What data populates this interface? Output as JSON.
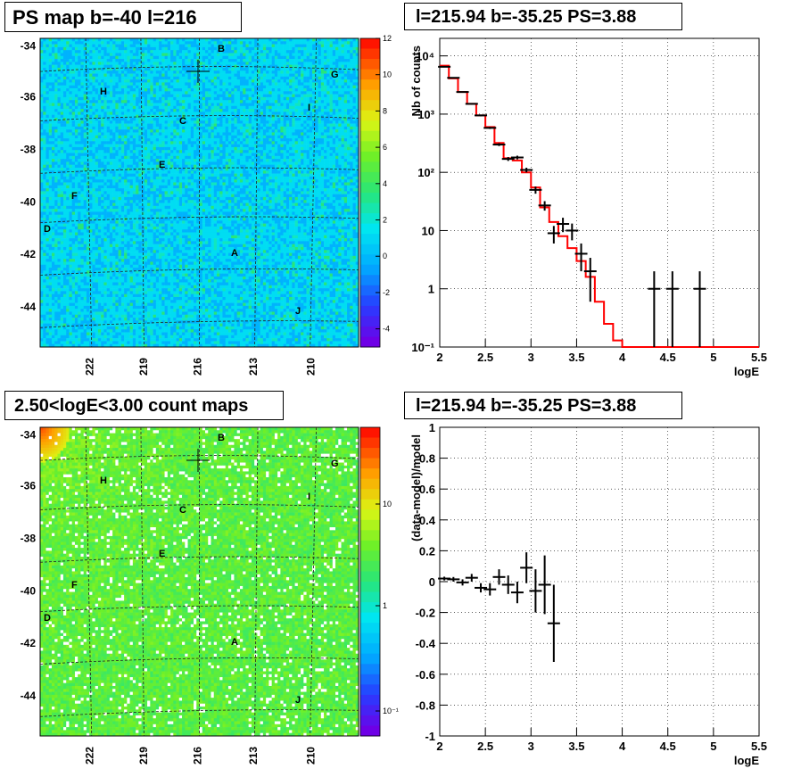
{
  "panels": {
    "ps_map_title": "PS map b=-40 l=216",
    "count_map_title": "2.50<logE<3.00 count maps",
    "spectrum_title": "l=215.94 b=-35.25 PS=3.88",
    "residual_title": "l=215.94 b=-35.25 PS=3.88"
  },
  "chart_data": [
    {
      "type": "heatmap",
      "title": "PS map b=-40 l=216",
      "x_ticks": [
        "222",
        "219",
        "216",
        "213",
        "210"
      ],
      "y_ticks": [
        "-34",
        "-36",
        "-38",
        "-40",
        "-42",
        "-44"
      ],
      "colorbar": {
        "ticks": [
          "12",
          "10",
          "8",
          "6",
          "4",
          "2",
          "0",
          "-2",
          "-4"
        ],
        "range": [
          -5,
          12
        ]
      },
      "source_labels": [
        "A",
        "B",
        "C",
        "D",
        "E",
        "F",
        "G",
        "H",
        "I",
        "J"
      ]
    },
    {
      "type": "heatmap",
      "title": "2.50<logE<3.00 count maps",
      "x_ticks": [
        "222",
        "219",
        "216",
        "213",
        "210"
      ],
      "y_ticks": [
        "-34",
        "-36",
        "-38",
        "-40",
        "-42",
        "-44"
      ],
      "colorbar": {
        "ticks": [
          "10",
          "1",
          "10⁻¹"
        ],
        "scale": "log"
      },
      "source_labels": [
        "A",
        "B",
        "C",
        "D",
        "E",
        "F",
        "G",
        "H",
        "I",
        "J"
      ]
    },
    {
      "type": "line",
      "title": "l=215.94 b=-35.25 PS=3.88",
      "xlabel": "logE",
      "ylabel": "Nb of counts",
      "xlim": [
        2,
        5.5
      ],
      "ylim": [
        0.1,
        20000
      ],
      "yscale": "log",
      "grid": true,
      "x_ticks": [
        "2",
        "2.5",
        "3",
        "3.5",
        "4",
        "4.5",
        "5",
        "5.5"
      ],
      "y_ticks": [
        "10⁻¹",
        "1",
        "10",
        "10²",
        "10³",
        "10⁴"
      ],
      "series": [
        {
          "x": [
            2.05,
            2.15,
            2.25,
            2.35,
            2.45,
            2.55,
            2.65,
            2.75,
            2.85,
            2.95,
            3.05,
            3.15,
            3.25,
            3.35,
            3.45,
            3.55,
            3.65
          ],
          "values": [
            6500,
            4200,
            2400,
            1500,
            950,
            580,
            300,
            170,
            180,
            110,
            50,
            27,
            9,
            13,
            10,
            4,
            2
          ],
          "errors": [
            80,
            65,
            50,
            40,
            31,
            24,
            17,
            13,
            13,
            10,
            7,
            5,
            3,
            3.6,
            3.2,
            2,
            1.4
          ]
        },
        {
          "x": [
            4.35,
            4.55,
            4.85
          ],
          "values": [
            1,
            1,
            1
          ],
          "errors": [
            1,
            1,
            1
          ]
        },
        {
          "x": [
            2.0,
            2.1,
            2.2,
            2.3,
            2.4,
            2.5,
            2.6,
            2.7,
            2.8,
            2.9,
            3.0,
            3.1,
            3.2,
            3.3,
            3.4,
            3.5,
            3.6,
            3.7,
            3.8,
            3.9,
            4.0,
            5.5
          ],
          "values": [
            6800,
            4100,
            2400,
            1500,
            950,
            600,
            320,
            175,
            160,
            100,
            55,
            25,
            14,
            8,
            5,
            3,
            1.6,
            0.6,
            0.25,
            0.13,
            0.1,
            0.1
          ]
        }
      ]
    },
    {
      "type": "scatter",
      "title": "l=215.94 b=-35.25 PS=3.88",
      "xlabel": "logE",
      "ylabel": "(data-model)/model",
      "xlim": [
        2,
        5.5
      ],
      "ylim": [
        -1,
        1
      ],
      "grid": true,
      "x_ticks": [
        "2",
        "2.5",
        "3",
        "3.5",
        "4",
        "4.5",
        "5",
        "5.5"
      ],
      "y_ticks": [
        "-1",
        "-0.8",
        "-0.6",
        "-0.4",
        "-0.2",
        "0",
        "0.2",
        "0.4",
        "0.6",
        "0.8",
        "1"
      ],
      "series": [
        {
          "x": [
            2.05,
            2.15,
            2.25,
            2.35,
            2.45,
            2.55,
            2.65,
            2.75,
            2.85,
            2.95,
            3.05,
            3.15,
            3.25
          ],
          "values": [
            0.02,
            0.015,
            -0.005,
            0.025,
            -0.04,
            -0.05,
            0.03,
            -0.02,
            -0.07,
            0.09,
            -0.06,
            -0.02,
            -0.27
          ],
          "errors": [
            0.012,
            0.015,
            0.02,
            0.025,
            0.03,
            0.04,
            0.05,
            0.06,
            0.07,
            0.1,
            0.14,
            0.19,
            0.25
          ]
        }
      ]
    }
  ]
}
